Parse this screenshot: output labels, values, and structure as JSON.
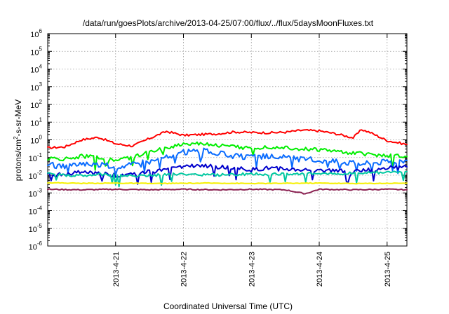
{
  "chart_data": {
    "type": "line",
    "title": "/data/run/goesPlots/archive/2013-04-25/07:00/flux/../flux/5daysMoonFluxes.txt",
    "xlabel": "Coordinated Universal Time (UTC)",
    "ylabel": "protons/cm²-s-sr-MeV",
    "ylabel_parts": {
      "main": "protons/cm",
      "sup": "2",
      "rest": "-s-sr-MeV"
    },
    "y_scale": "log",
    "ylim": [
      "1e-6",
      "1e6"
    ],
    "y_ticks": [
      {
        "base": "10",
        "exp": "-6"
      },
      {
        "base": "10",
        "exp": "-5"
      },
      {
        "base": "10",
        "exp": "-4"
      },
      {
        "base": "10",
        "exp": "-3"
      },
      {
        "base": "10",
        "exp": "-2"
      },
      {
        "base": "10",
        "exp": "-1"
      },
      {
        "base": "10",
        "exp": "0"
      },
      {
        "base": "10",
        "exp": "1"
      },
      {
        "base": "10",
        "exp": "2"
      },
      {
        "base": "10",
        "exp": "3"
      },
      {
        "base": "10",
        "exp": "4"
      },
      {
        "base": "10",
        "exp": "5"
      },
      {
        "base": "10",
        "exp": "6"
      }
    ],
    "x_range": [
      "2013-04-20T00:00",
      "2013-04-25T07:00"
    ],
    "x_ticks": [
      "2013-4-21",
      "2013-4-22",
      "2013-4-23",
      "2013-4-24",
      "2013-4-25"
    ],
    "grid": true,
    "legend": "none",
    "series": [
      {
        "color": "#ff0000",
        "x": [
          "2013-04-20T00:00",
          "2013-04-20T06:00",
          "2013-04-20T12:00",
          "2013-04-20T18:00",
          "2013-04-21T00:00",
          "2013-04-21T06:00",
          "2013-04-21T12:00",
          "2013-04-21T18:00",
          "2013-04-22T00:00",
          "2013-04-22T06:00",
          "2013-04-22T12:00",
          "2013-04-22T18:00",
          "2013-04-23T00:00",
          "2013-04-23T06:00",
          "2013-04-23T12:00",
          "2013-04-23T18:00",
          "2013-04-24T00:00",
          "2013-04-24T06:00",
          "2013-04-24T12:00",
          "2013-04-24T15:00",
          "2013-04-24T18:00",
          "2013-04-25T00:00",
          "2013-04-25T07:00"
        ],
        "values": [
          0.35,
          0.4,
          1.0,
          1.4,
          0.6,
          0.45,
          1.2,
          3.0,
          1.8,
          2.0,
          2.2,
          2.8,
          2.6,
          2.5,
          2.7,
          3.5,
          3.2,
          2.2,
          1.3,
          3.8,
          2.6,
          0.9,
          0.55
        ]
      },
      {
        "color": "#00ee00",
        "x": [
          "2013-04-20T00:00",
          "2013-04-20T06:00",
          "2013-04-20T12:00",
          "2013-04-20T18:00",
          "2013-04-21T00:00",
          "2013-04-21T06:00",
          "2013-04-21T12:00",
          "2013-04-21T18:00",
          "2013-04-22T00:00",
          "2013-04-22T06:00",
          "2013-04-22T12:00",
          "2013-04-22T18:00",
          "2013-04-23T00:00",
          "2013-04-23T06:00",
          "2013-04-23T12:00",
          "2013-04-23T18:00",
          "2013-04-24T00:00",
          "2013-04-24T06:00",
          "2013-04-24T12:00",
          "2013-04-24T18:00",
          "2013-04-25T00:00",
          "2013-04-25T07:00"
        ],
        "values": [
          0.09,
          0.08,
          0.12,
          0.1,
          0.07,
          0.1,
          0.2,
          0.35,
          0.6,
          0.65,
          0.5,
          0.4,
          0.35,
          0.4,
          0.38,
          0.3,
          0.28,
          0.22,
          0.18,
          0.15,
          0.13,
          0.11
        ]
      },
      {
        "color": "#0a6cff",
        "x": [
          "2013-04-20T00:00",
          "2013-04-20T06:00",
          "2013-04-20T12:00",
          "2013-04-20T18:00",
          "2013-04-21T00:00",
          "2013-04-21T06:00",
          "2013-04-21T12:00",
          "2013-04-21T18:00",
          "2013-04-22T00:00",
          "2013-04-22T06:00",
          "2013-04-22T12:00",
          "2013-04-22T18:00",
          "2013-04-23T00:00",
          "2013-04-23T06:00",
          "2013-04-23T12:00",
          "2013-04-23T18:00",
          "2013-04-24T00:00",
          "2013-04-24T06:00",
          "2013-04-24T12:00",
          "2013-04-24T18:00",
          "2013-04-25T00:00",
          "2013-04-25T07:00"
        ],
        "values": [
          0.04,
          0.03,
          0.05,
          0.04,
          0.03,
          0.04,
          0.06,
          0.1,
          0.2,
          0.25,
          0.18,
          0.12,
          0.1,
          0.12,
          0.1,
          0.08,
          0.07,
          0.06,
          0.05,
          0.05,
          0.06,
          0.07
        ]
      },
      {
        "color": "#0000cc",
        "x": [
          "2013-04-20T00:00",
          "2013-04-20T06:00",
          "2013-04-20T12:00",
          "2013-04-20T18:00",
          "2013-04-21T00:00",
          "2013-04-21T06:00",
          "2013-04-21T12:00",
          "2013-04-21T18:00",
          "2013-04-22T00:00",
          "2013-04-22T06:00",
          "2013-04-22T12:00",
          "2013-04-22T18:00",
          "2013-04-23T00:00",
          "2013-04-23T06:00",
          "2013-04-23T12:00",
          "2013-04-23T18:00",
          "2013-04-24T00:00",
          "2013-04-24T06:00",
          "2013-04-24T12:00",
          "2013-04-24T18:00",
          "2013-04-25T00:00",
          "2013-04-25T07:00"
        ],
        "values": [
          0.012,
          0.01,
          0.015,
          0.012,
          0.01,
          0.012,
          0.016,
          0.02,
          0.03,
          0.035,
          0.03,
          0.025,
          0.02,
          0.025,
          0.022,
          0.02,
          0.02,
          0.018,
          0.016,
          0.02,
          0.025,
          0.03
        ]
      },
      {
        "color": "#00c8a0",
        "x": [
          "2013-04-20T00:00",
          "2013-04-20T06:00",
          "2013-04-20T12:00",
          "2013-04-20T18:00",
          "2013-04-21T00:00",
          "2013-04-21T06:00",
          "2013-04-21T12:00",
          "2013-04-21T18:00",
          "2013-04-22T00:00",
          "2013-04-22T06:00",
          "2013-04-22T12:00",
          "2013-04-22T18:00",
          "2013-04-23T00:00",
          "2013-04-23T06:00",
          "2013-04-23T12:00",
          "2013-04-23T18:00",
          "2013-04-24T00:00",
          "2013-04-24T06:00",
          "2013-04-24T12:00",
          "2013-04-24T18:00",
          "2013-04-25T00:00",
          "2013-04-25T07:00"
        ],
        "values": [
          0.012,
          0.01,
          0.009,
          0.011,
          0.01,
          0.009,
          0.01,
          0.011,
          0.012,
          0.011,
          0.01,
          0.011,
          0.012,
          0.011,
          0.012,
          0.012,
          0.013,
          0.012,
          0.013,
          0.014,
          0.015,
          0.016
        ]
      },
      {
        "color": "#f5f000",
        "x": [
          "2013-04-20T00:00",
          "2013-04-20T12:00",
          "2013-04-21T00:00",
          "2013-04-21T12:00",
          "2013-04-22T00:00",
          "2013-04-22T12:00",
          "2013-04-23T00:00",
          "2013-04-23T12:00",
          "2013-04-24T00:00",
          "2013-04-24T12:00",
          "2013-04-25T00:00",
          "2013-04-25T07:00"
        ],
        "values": [
          0.0038,
          0.0035,
          0.0036,
          0.0034,
          0.0035,
          0.0036,
          0.0034,
          0.0035,
          0.0036,
          0.0034,
          0.0035,
          0.0036
        ]
      },
      {
        "color": "#8b2252",
        "x": [
          "2013-04-20T00:00",
          "2013-04-20T12:00",
          "2013-04-21T00:00",
          "2013-04-21T12:00",
          "2013-04-22T00:00",
          "2013-04-22T12:00",
          "2013-04-23T00:00",
          "2013-04-23T12:00",
          "2013-04-23T19:00",
          "2013-04-24T00:00",
          "2013-04-24T12:00",
          "2013-04-25T00:00",
          "2013-04-25T07:00"
        ],
        "values": [
          0.0016,
          0.0015,
          0.0016,
          0.0015,
          0.0016,
          0.0015,
          0.0016,
          0.0015,
          0.0009,
          0.0016,
          0.0015,
          0.0016,
          0.0015
        ]
      }
    ]
  }
}
